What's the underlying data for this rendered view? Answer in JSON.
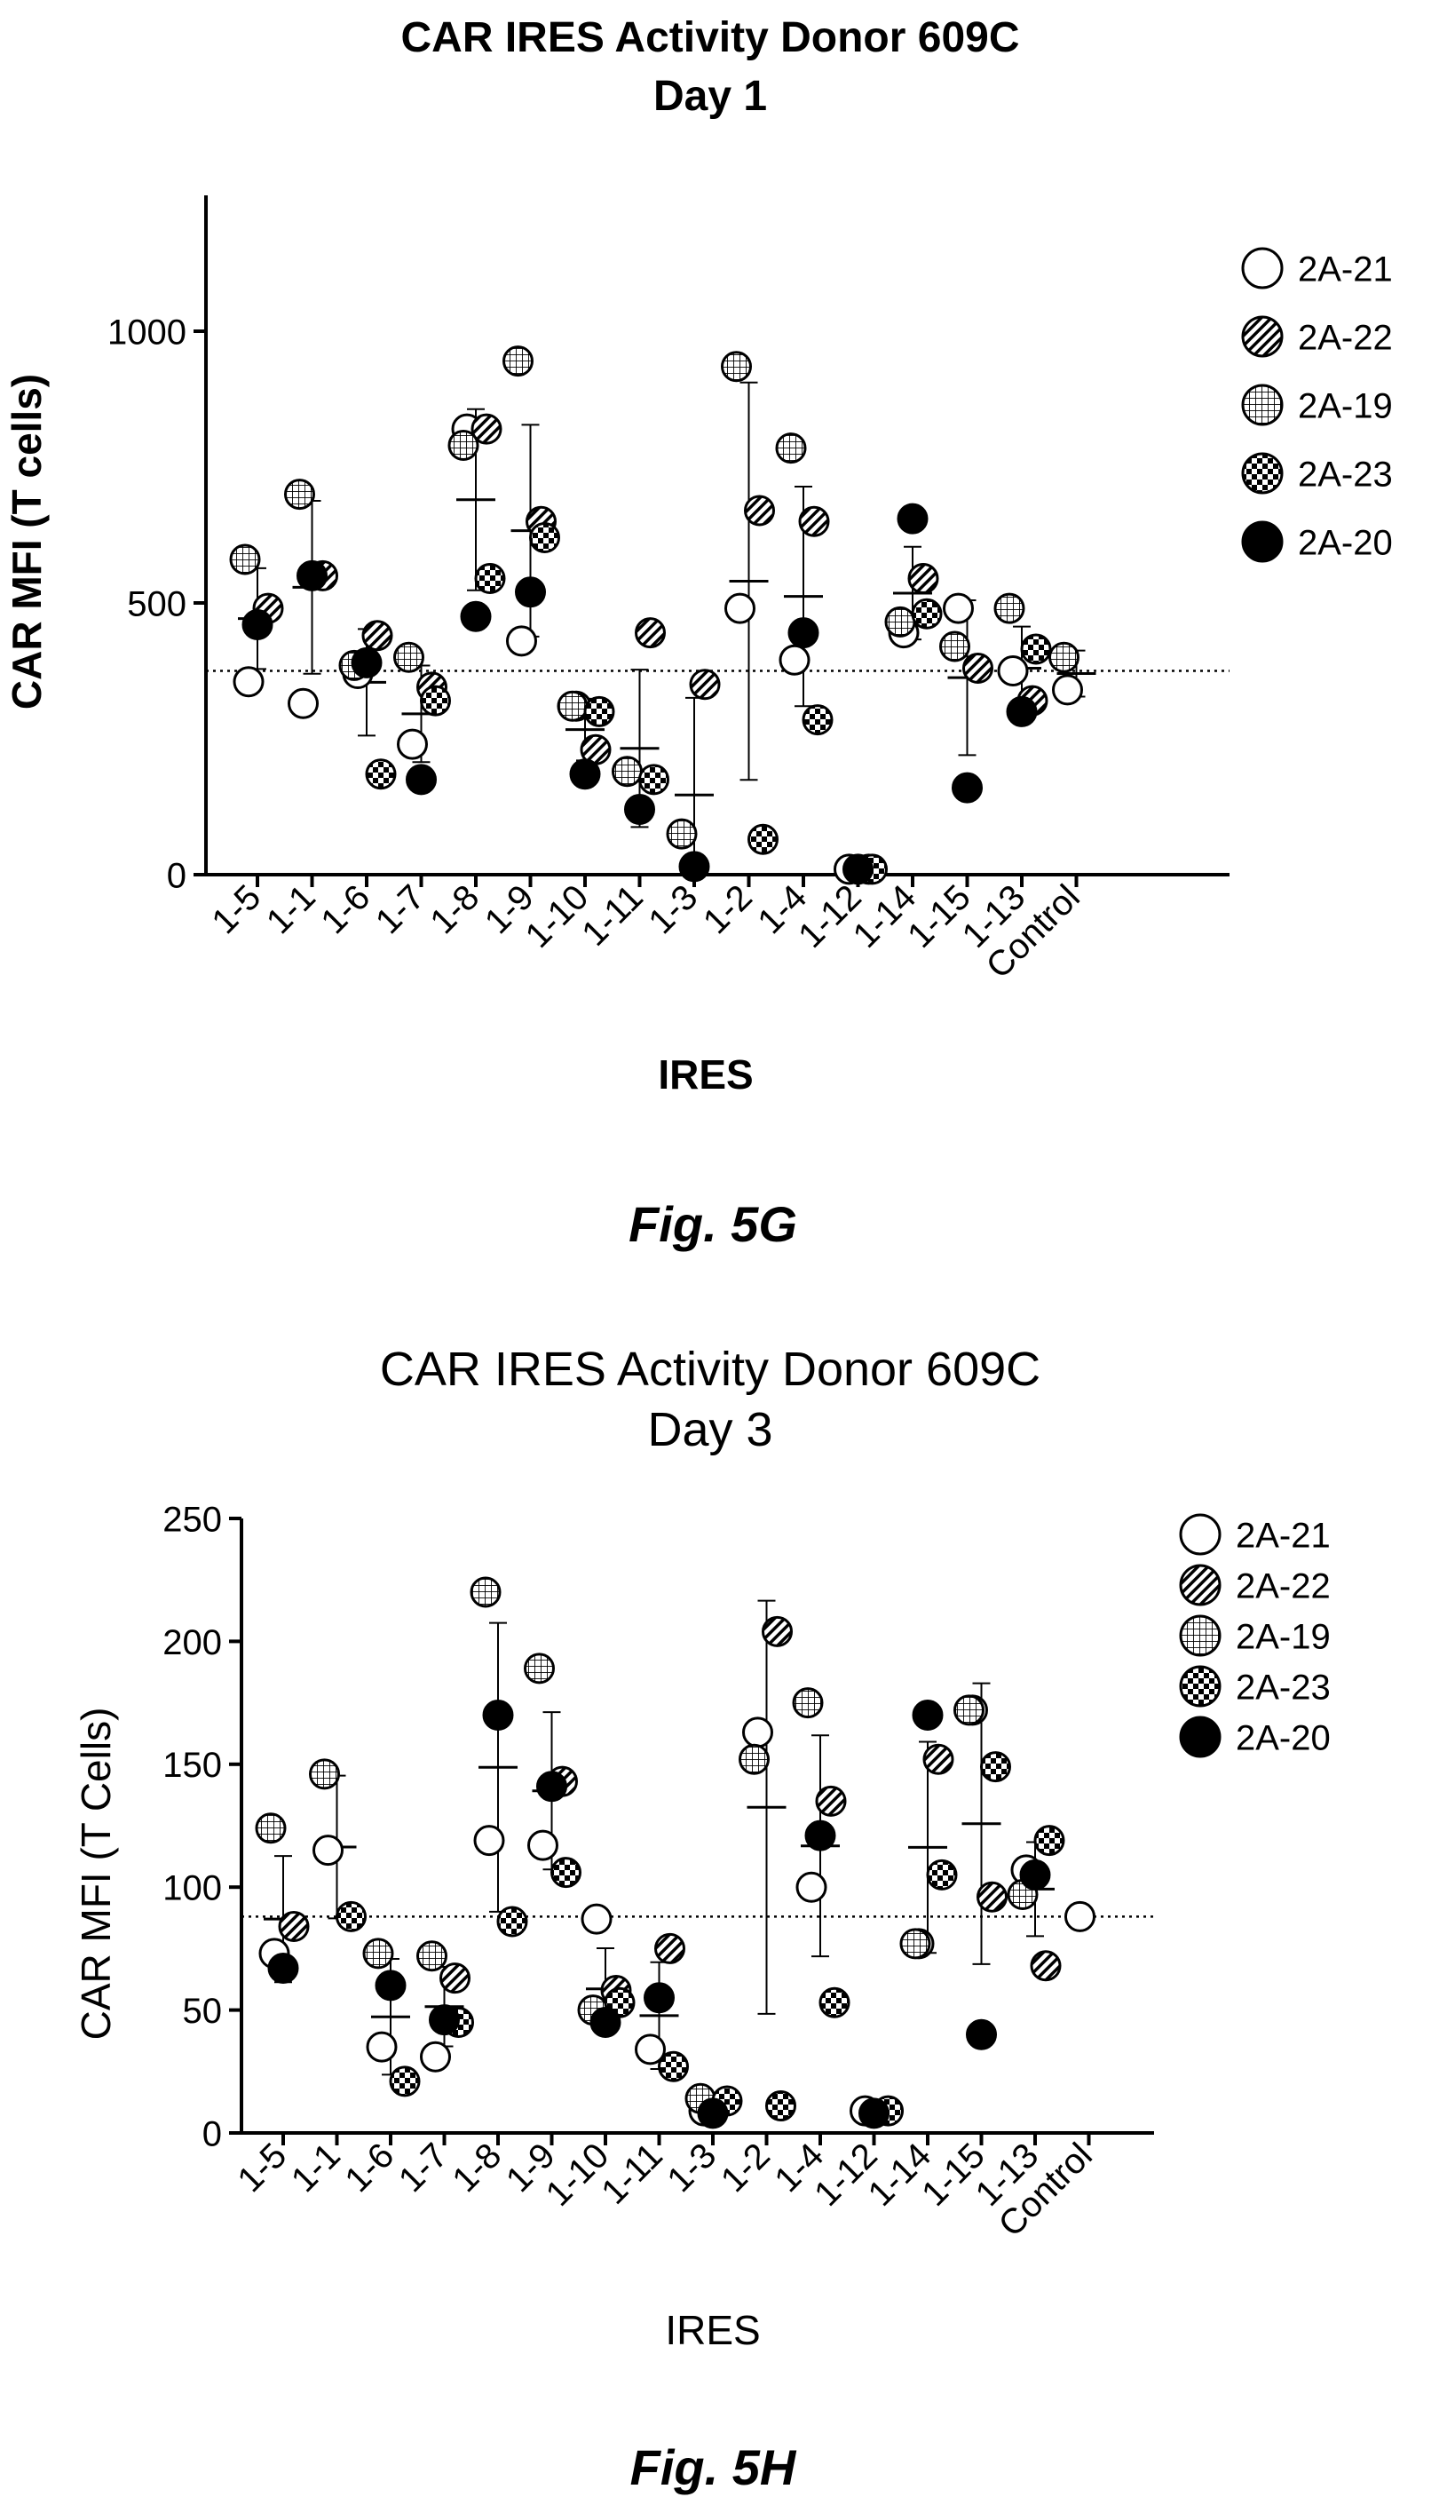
{
  "figures": [
    {
      "caption": "Fig. 5G"
    },
    {
      "caption": "Fig. 5H"
    }
  ],
  "chart_data": [
    {
      "type": "scatter",
      "title": "CAR IRES Activity Donor 609C",
      "subtitle": "Day 1",
      "xlabel": "IRES",
      "ylabel": "CAR MFI (T cells)",
      "ylim": [
        0,
        1250
      ],
      "yticks": [
        0,
        500,
        1000
      ],
      "categories": [
        "1-5",
        "1-1",
        "1-6",
        "1-7",
        "1-8",
        "1-9",
        "1-10",
        "1-11",
        "1-3",
        "1-2",
        "1-4",
        "1-12",
        "1-14",
        "1-15",
        "1-13",
        "Control"
      ],
      "reference_line": 375,
      "legend_position": "right",
      "series": [
        {
          "name": "2A-21",
          "marker": "open",
          "values": [
            355,
            315,
            370,
            240,
            820,
            430,
            310,
            null,
            null,
            490,
            395,
            10,
            445,
            490,
            375,
            340
          ]
        },
        {
          "name": "2A-22",
          "marker": "hatch",
          "values": [
            490,
            550,
            440,
            345,
            820,
            650,
            230,
            445,
            350,
            670,
            650,
            10,
            545,
            380,
            320,
            null
          ]
        },
        {
          "name": "2A-19",
          "marker": "grid",
          "values": [
            580,
            700,
            385,
            400,
            790,
            945,
            310,
            190,
            75,
            935,
            785,
            null,
            465,
            420,
            490,
            400
          ]
        },
        {
          "name": "2A-23",
          "marker": "checker",
          "values": [
            null,
            null,
            185,
            320,
            545,
            620,
            300,
            175,
            null,
            65,
            285,
            10,
            480,
            null,
            415,
            null
          ]
        },
        {
          "name": "2A-20",
          "marker": "filled",
          "values": [
            460,
            550,
            390,
            175,
            475,
            520,
            185,
            120,
            15,
            null,
            445,
            10,
            655,
            160,
            300,
            null
          ]
        }
      ]
    },
    {
      "type": "scatter",
      "title": "CAR IRES Activity Donor 609C",
      "subtitle": "Day 3",
      "xlabel": "IRES",
      "ylabel": "CAR MFI (T Cells)",
      "ylim": [
        0,
        250
      ],
      "yticks": [
        0,
        50,
        100,
        150,
        200,
        250
      ],
      "categories": [
        "1-5",
        "1-1",
        "1-6",
        "1-7",
        "1-8",
        "1-9",
        "1-10",
        "1-11",
        "1-3",
        "1-2",
        "1-4",
        "1-12",
        "1-14",
        "1-15",
        "1-13",
        "Control"
      ],
      "reference_line": 88,
      "legend_position": "right",
      "series": [
        {
          "name": "2A-21",
          "marker": "open",
          "values": [
            73,
            115,
            35,
            31,
            119,
            117,
            87,
            34,
            9,
            163,
            100,
            9,
            77,
            172,
            107,
            88
          ]
        },
        {
          "name": "2A-22",
          "marker": "hatch",
          "values": [
            84,
            null,
            null,
            63,
            null,
            143,
            58,
            75,
            null,
            204,
            135,
            null,
            152,
            96,
            68,
            null
          ]
        },
        {
          "name": "2A-19",
          "marker": "grid",
          "values": [
            124,
            146,
            73,
            72,
            220,
            189,
            50,
            null,
            14,
            152,
            175,
            null,
            77,
            172,
            97,
            null
          ]
        },
        {
          "name": "2A-23",
          "marker": "checker",
          "values": [
            null,
            88,
            21,
            45,
            86,
            106,
            53,
            27,
            13,
            11,
            53,
            9,
            105,
            149,
            119,
            null
          ]
        },
        {
          "name": "2A-20",
          "marker": "filled",
          "values": [
            67,
            null,
            60,
            46,
            170,
            141,
            45,
            55,
            8,
            null,
            121,
            8,
            170,
            40,
            105,
            null
          ]
        }
      ]
    }
  ]
}
